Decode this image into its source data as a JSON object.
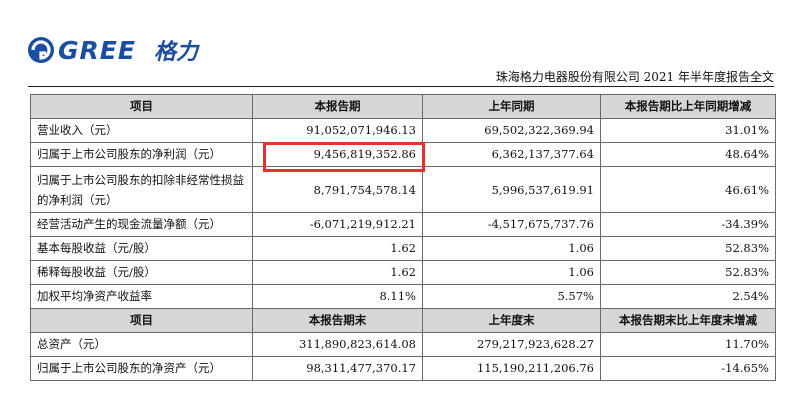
{
  "brand": {
    "logo_text": "GREE",
    "logo_chinese": "格力",
    "brand_color": "#1a4fa0"
  },
  "doc_title": "珠海格力电器股份有限公司 2021 年半年度报告全文",
  "highlight_color": "#e8312a",
  "table": {
    "header1": [
      "项目",
      "本报告期",
      "上年同期",
      "本报告期比上年同期增减"
    ],
    "rows1": [
      [
        "营业收入（元）",
        "91,052,071,946.13",
        "69,502,322,369.94",
        "31.01%"
      ],
      [
        "归属于上市公司股东的净利润（元）",
        "9,456,819,352.86",
        "6,362,137,377.64",
        "48.64%"
      ],
      [
        "归属于上市公司股东的扣除非经常性损益的净利润（元）",
        "8,791,754,578.14",
        "5,996,537,619.91",
        "46.61%"
      ],
      [
        "经营活动产生的现金流量净额（元）",
        "-6,071,219,912.21",
        "-4,517,675,737.76",
        "-34.39%"
      ],
      [
        "基本每股收益（元/股）",
        "1.62",
        "1.06",
        "52.83%"
      ],
      [
        "稀释每股收益（元/股）",
        "1.62",
        "1.06",
        "52.83%"
      ],
      [
        "加权平均净资产收益率",
        "8.11%",
        "5.57%",
        "2.54%"
      ]
    ],
    "header2": [
      "项目",
      "本报告期末",
      "上年度末",
      "本报告期末比上年度末增减"
    ],
    "rows2": [
      [
        "总资产（元）",
        "311,890,823,614.08",
        "279,217,923,628.27",
        "11.70%"
      ],
      [
        "归属于上市公司股东的净资产（元）",
        "98,311,477,370.17",
        "115,190,211,206.76",
        "-14.65%"
      ]
    ]
  }
}
